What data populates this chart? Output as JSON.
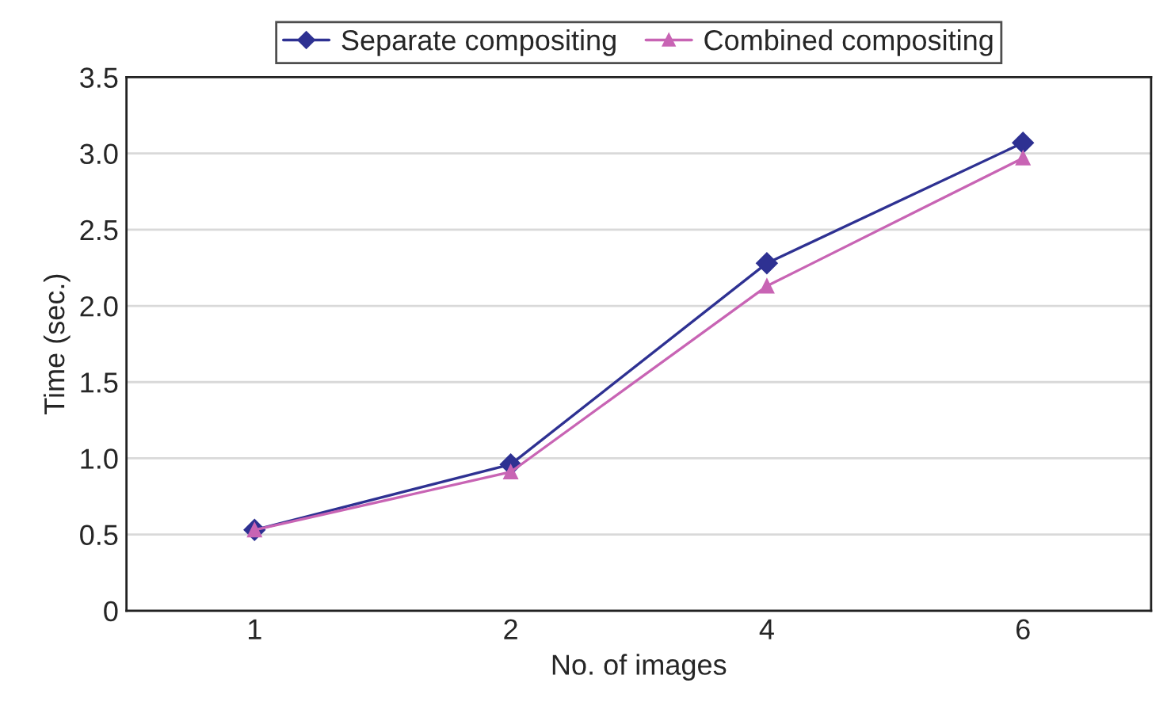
{
  "chart_data": {
    "type": "line",
    "xlabel": "No. of images",
    "ylabel": "Time (sec.)",
    "categories": [
      "1",
      "2",
      "4",
      "6"
    ],
    "series": [
      {
        "name": "Separate compositing",
        "color": "#2e3192",
        "marker": "diamond",
        "values": [
          0.53,
          0.96,
          2.28,
          3.07
        ]
      },
      {
        "name": "Combined compositing",
        "color": "#c864b4",
        "marker": "triangle",
        "values": [
          0.53,
          0.91,
          2.13,
          2.97
        ]
      }
    ],
    "ylim": [
      0,
      3.5
    ],
    "yticks": [
      {
        "value": 0,
        "label": "0"
      },
      {
        "value": 0.5,
        "label": "0.5"
      },
      {
        "value": 1.0,
        "label": "1.0"
      },
      {
        "value": 1.5,
        "label": "1.5"
      },
      {
        "value": 2.0,
        "label": "2.0"
      },
      {
        "value": 2.5,
        "label": "2.5"
      },
      {
        "value": 3.0,
        "label": "3.0"
      },
      {
        "value": 3.5,
        "label": "3.5"
      }
    ],
    "grid": "y",
    "legend": "top",
    "line_style": "solid"
  }
}
